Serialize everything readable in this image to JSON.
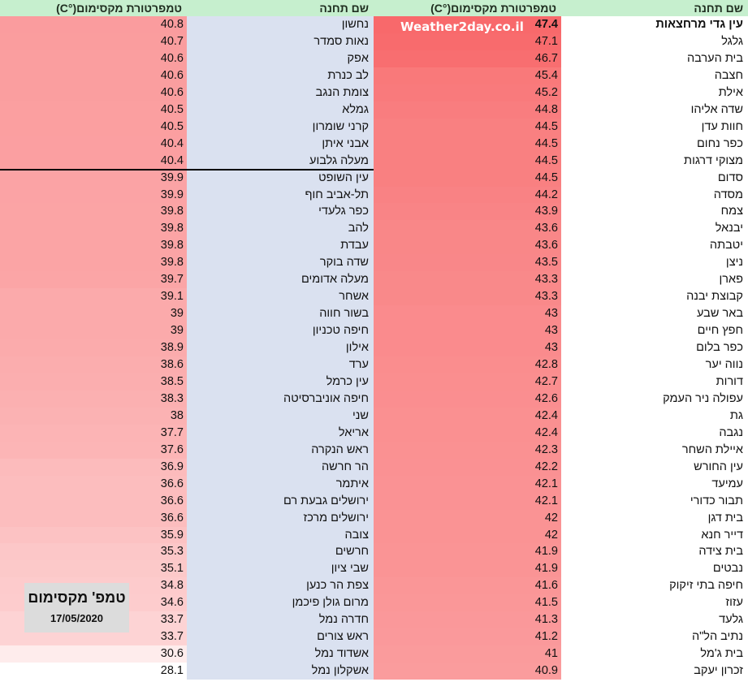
{
  "headers": {
    "left_temp": "טמפרטורת מקסימום(°C)",
    "left_station": "שם תחנה",
    "right_temp": "טמפרטורת מקסימום(°C)",
    "right_station": "שם תחנה"
  },
  "watermark": "Weather2day.co.il",
  "legend": {
    "title": "טמפ' מקסימום",
    "date": "17/05/2020"
  },
  "right_rows": [
    {
      "station": "עין גדי מרחצאות",
      "temp": "47.4"
    },
    {
      "station": "גלגל",
      "temp": "47.1"
    },
    {
      "station": "בית הערבה",
      "temp": "46.7"
    },
    {
      "station": "חצבה",
      "temp": "45.4"
    },
    {
      "station": "אילת",
      "temp": "45.2"
    },
    {
      "station": "שדה אליהו",
      "temp": "44.8"
    },
    {
      "station": "חוות עדן",
      "temp": "44.5"
    },
    {
      "station": "כפר נחום",
      "temp": "44.5"
    },
    {
      "station": "מצוקי דרגות",
      "temp": "44.5"
    },
    {
      "station": "סדום",
      "temp": "44.5"
    },
    {
      "station": "מסדה",
      "temp": "44.2"
    },
    {
      "station": "צמח",
      "temp": "43.9"
    },
    {
      "station": "יבנאל",
      "temp": "43.6"
    },
    {
      "station": "יטבתה",
      "temp": "43.6"
    },
    {
      "station": "ניצן",
      "temp": "43.5"
    },
    {
      "station": "פארן",
      "temp": "43.3"
    },
    {
      "station": "קבוצת יבנה",
      "temp": "43.3"
    },
    {
      "station": "באר שבע",
      "temp": "43"
    },
    {
      "station": "חפץ חיים",
      "temp": "43"
    },
    {
      "station": "כפר בלום",
      "temp": "43"
    },
    {
      "station": "נווה יער",
      "temp": "42.8"
    },
    {
      "station": "דורות",
      "temp": "42.7"
    },
    {
      "station": "עפולה ניר העמק",
      "temp": "42.6"
    },
    {
      "station": "גת",
      "temp": "42.4"
    },
    {
      "station": "נגבה",
      "temp": "42.4"
    },
    {
      "station": "איילת השחר",
      "temp": "42.3"
    },
    {
      "station": "עין החורש",
      "temp": "42.2"
    },
    {
      "station": "עמיעד",
      "temp": "42.1"
    },
    {
      "station": "תבור כדורי",
      "temp": "42.1"
    },
    {
      "station": "בית דגן",
      "temp": "42"
    },
    {
      "station": "דייר חנא",
      "temp": "42"
    },
    {
      "station": "בית צידה",
      "temp": "41.9"
    },
    {
      "station": "נבטים",
      "temp": "41.9"
    },
    {
      "station": "חיפה בתי זיקוק",
      "temp": "41.6"
    },
    {
      "station": "עזוז",
      "temp": "41.5"
    },
    {
      "station": "גלעד",
      "temp": "41.3"
    },
    {
      "station": "נתיב הל\"ה",
      "temp": "41.2"
    },
    {
      "station": "בית ג'מל",
      "temp": "41"
    },
    {
      "station": "זכרון יעקב",
      "temp": "40.9"
    }
  ],
  "left_rows": [
    {
      "station": "נחשון",
      "temp": "40.8"
    },
    {
      "station": "נאות סמדר",
      "temp": "40.7"
    },
    {
      "station": "אפק",
      "temp": "40.6"
    },
    {
      "station": "לב כנרת",
      "temp": "40.6"
    },
    {
      "station": "צומת הנגב",
      "temp": "40.6"
    },
    {
      "station": "גמלא",
      "temp": "40.5"
    },
    {
      "station": "קרני שומרון",
      "temp": "40.5"
    },
    {
      "station": "אבני איתן",
      "temp": "40.4"
    },
    {
      "station": "מעלה גלבוע",
      "temp": "40.4"
    },
    {
      "station": "עין השופט",
      "temp": "39.9"
    },
    {
      "station": "תל-אביב חוף",
      "temp": "39.9"
    },
    {
      "station": "כפר גלעדי",
      "temp": "39.8"
    },
    {
      "station": "להב",
      "temp": "39.8"
    },
    {
      "station": "עבדת",
      "temp": "39.8"
    },
    {
      "station": "שדה בוקר",
      "temp": "39.8"
    },
    {
      "station": "מעלה אדומים",
      "temp": "39.7"
    },
    {
      "station": "אשחר",
      "temp": "39.1"
    },
    {
      "station": "בשור חווה",
      "temp": "39"
    },
    {
      "station": "חיפה טכניון",
      "temp": "39"
    },
    {
      "station": "אילון",
      "temp": "38.9"
    },
    {
      "station": "ערד",
      "temp": "38.6"
    },
    {
      "station": "עין כרמל",
      "temp": "38.5"
    },
    {
      "station": "חיפה אוניברסיטה",
      "temp": "38.3"
    },
    {
      "station": "שני",
      "temp": "38"
    },
    {
      "station": "אריאל",
      "temp": "37.7"
    },
    {
      "station": "ראש הנקרה",
      "temp": "37.6"
    },
    {
      "station": "הר חרשה",
      "temp": "36.9"
    },
    {
      "station": "איתמר",
      "temp": "36.6"
    },
    {
      "station": "ירושלים גבעת רם",
      "temp": "36.6"
    },
    {
      "station": "ירושלים מרכז",
      "temp": "36.6"
    },
    {
      "station": "צובה",
      "temp": "35.9"
    },
    {
      "station": "חרשים",
      "temp": "35.3"
    },
    {
      "station": "שבי ציון",
      "temp": "35.1"
    },
    {
      "station": "צפת הר כנען",
      "temp": "34.8"
    },
    {
      "station": "מרום גולן פיכמן",
      "temp": "34.6"
    },
    {
      "station": "חדרה נמל",
      "temp": "33.7"
    },
    {
      "station": "ראש צורים",
      "temp": "33.7"
    },
    {
      "station": "אשדוד נמל",
      "temp": "30.6"
    },
    {
      "station": "אשקלון נמל",
      "temp": "28.1"
    }
  ],
  "colors": {
    "header_bg": "#c6efce",
    "station_bg_left": "#dae1f0",
    "heat_max": "#f8696b",
    "heat_min": "#ffffff",
    "divider": "#000000",
    "legend_bg": "#dcdcdc"
  }
}
